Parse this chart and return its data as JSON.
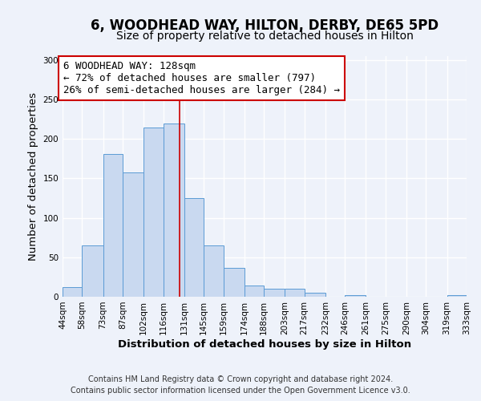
{
  "title": "6, WOODHEAD WAY, HILTON, DERBY, DE65 5PD",
  "subtitle": "Size of property relative to detached houses in Hilton",
  "xlabel": "Distribution of detached houses by size in Hilton",
  "ylabel": "Number of detached properties",
  "footer_line1": "Contains HM Land Registry data © Crown copyright and database right 2024.",
  "footer_line2": "Contains public sector information licensed under the Open Government Licence v3.0.",
  "bar_edges": [
    44,
    58,
    73,
    87,
    102,
    116,
    131,
    145,
    159,
    174,
    188,
    203,
    217,
    232,
    246,
    261,
    275,
    290,
    304,
    319,
    333
  ],
  "bar_heights": [
    12,
    65,
    181,
    158,
    215,
    220,
    125,
    65,
    37,
    14,
    10,
    10,
    5,
    0,
    2,
    0,
    0,
    0,
    0,
    2
  ],
  "bar_color": "#c9d9f0",
  "bar_edge_color": "#5b9bd5",
  "property_line_x": 128,
  "property_line_color": "#cc0000",
  "annotation_text": "6 WOODHEAD WAY: 128sqm\n← 72% of detached houses are smaller (797)\n26% of semi-detached houses are larger (284) →",
  "annotation_box_color": "#ffffff",
  "annotation_box_edge_color": "#cc0000",
  "ylim": [
    0,
    305
  ],
  "yticks": [
    0,
    50,
    100,
    150,
    200,
    250,
    300
  ],
  "xlim": [
    44,
    333
  ],
  "background_color": "#eef2fa",
  "plot_background_color": "#eef2fa",
  "grid_color": "#ffffff",
  "title_fontsize": 12,
  "subtitle_fontsize": 10,
  "axis_label_fontsize": 9.5,
  "tick_fontsize": 7.5,
  "annotation_fontsize": 9,
  "footer_fontsize": 7
}
